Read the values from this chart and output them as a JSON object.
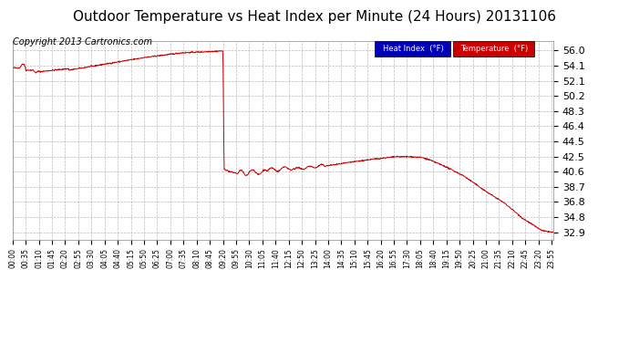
{
  "title": "Outdoor Temperature vs Heat Index per Minute (24 Hours) 20131106",
  "copyright": "Copyright 2013 Cartronics.com",
  "ylabel_ticks": [
    32.9,
    34.8,
    36.8,
    38.7,
    40.6,
    42.5,
    44.5,
    46.4,
    48.3,
    50.2,
    52.1,
    54.1,
    56.0
  ],
  "ylim": [
    32.0,
    57.2
  ],
  "line_color": "#cc0000",
  "bg_color": "#ffffff",
  "grid_color": "#aaaaaa",
  "legend_heat_bg": "#0000bb",
  "legend_temp_bg": "#cc0000",
  "legend_heat_label": "Heat Index  (°F)",
  "legend_temp_label": "Temperature  (°F)",
  "title_fontsize": 11,
  "copyright_fontsize": 7,
  "tick_interval_minutes": 35
}
